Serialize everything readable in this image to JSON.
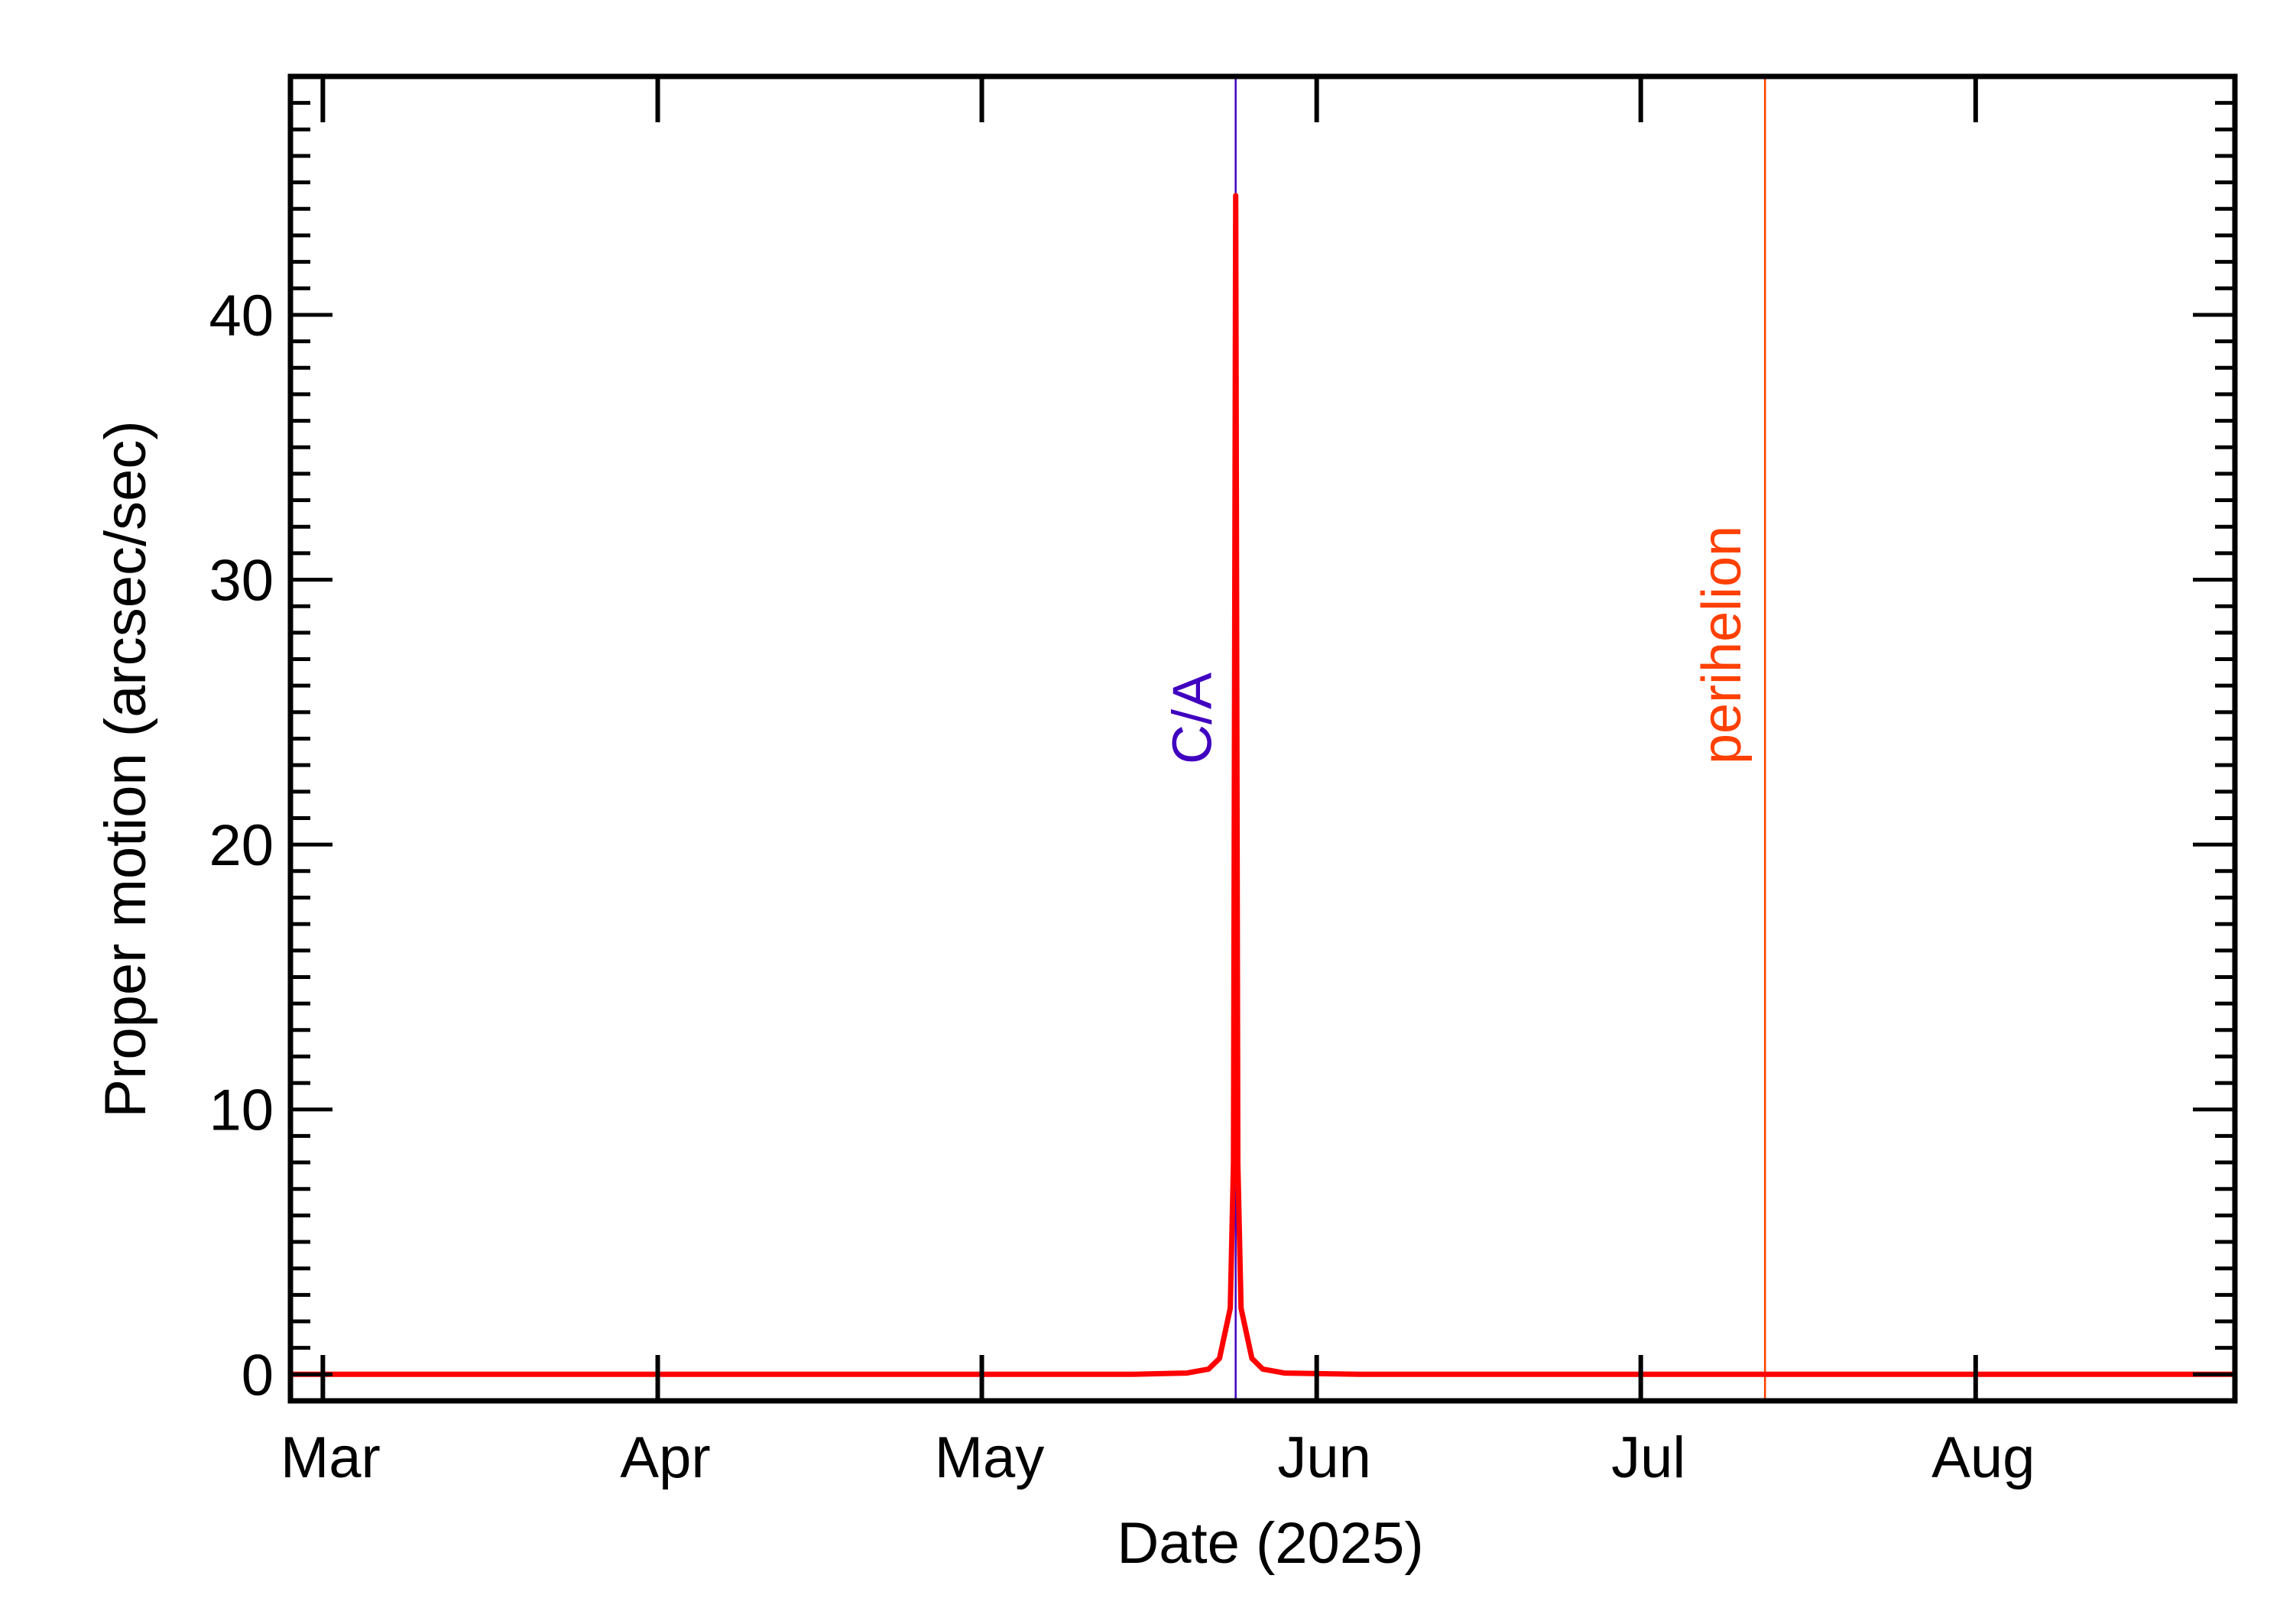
{
  "chart_data": {
    "type": "line",
    "xlabel": "Date (2025)",
    "ylabel": "Proper motion (arcsec/sec)",
    "x_tick_labels": [
      "Mar",
      "Apr",
      "May",
      "Jun",
      "Jul",
      "Aug"
    ],
    "x_tick_dates": [
      "2025-03-01",
      "2025-04-01",
      "2025-05-01",
      "2025-06-01",
      "2025-07-01",
      "2025-08-01"
    ],
    "x_range": [
      "2025-02-26",
      "2025-08-25"
    ],
    "y_tick_labels": [
      "0",
      "10",
      "20",
      "30",
      "40"
    ],
    "y_ticks": [
      0,
      10,
      20,
      30,
      40
    ],
    "ylim": [
      -1,
      49
    ],
    "grid": false,
    "series": [
      {
        "color": "#ff0000",
        "x": [
          "2025-02-26",
          "2025-04-15",
          "2025-05-15",
          "2025-05-20",
          "2025-05-22",
          "2025-05-23",
          "2025-05-24",
          "2025-05-24.3",
          "2025-05-24.5",
          "2025-05-24.7",
          "2025-05-25",
          "2025-05-26",
          "2025-05-27",
          "2025-05-29",
          "2025-06-05",
          "2025-07-15",
          "2025-08-25"
        ],
        "values": [
          0,
          0,
          0,
          0.05,
          0.2,
          0.6,
          2.5,
          8,
          44.5,
          8,
          2.5,
          0.6,
          0.2,
          0.05,
          0,
          0,
          0
        ]
      }
    ],
    "markers": [
      {
        "label": "C/A",
        "date": "2025-05-24.5",
        "color": "#4000c0"
      },
      {
        "label": "perihelion",
        "date": "2025-07-12.5",
        "color": "#ff4000"
      }
    ]
  }
}
